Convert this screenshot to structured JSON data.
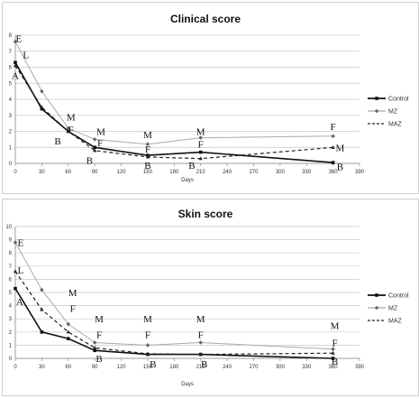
{
  "chart_data": [
    {
      "type": "line",
      "title": "Clinical score",
      "xlabel": "Days",
      "ylabel": "",
      "xlim": [
        0,
        390
      ],
      "ylim": [
        0,
        8
      ],
      "x_ticks": [
        "0",
        "30",
        "60",
        "90",
        "120",
        "150",
        "180",
        "210",
        "240",
        "270",
        "300",
        "330",
        "360",
        "390"
      ],
      "y_ticks": [
        "0",
        "1",
        "2",
        "3",
        "4",
        "5",
        "6",
        "7",
        "8"
      ],
      "grid": true,
      "legend": "right",
      "x": [
        0,
        30,
        60,
        90,
        150,
        210,
        360
      ],
      "series": [
        {
          "name": "Control",
          "values": [
            6.3,
            3.4,
            2.0,
            1.0,
            0.5,
            0.7,
            0.05
          ]
        },
        {
          "name": "MZ",
          "values": [
            7.6,
            4.5,
            2.2,
            1.5,
            1.2,
            1.6,
            1.7
          ]
        },
        {
          "name": "MAZ",
          "values": [
            6.1,
            3.5,
            2.0,
            0.8,
            0.4,
            0.3,
            1.0
          ]
        }
      ],
      "annotations": [
        {
          "text": "E",
          "x": 4,
          "y": 7.8
        },
        {
          "text": "L",
          "x": 12,
          "y": 6.8
        },
        {
          "text": "A",
          "x": 0,
          "y": 5.5
        },
        {
          "text": "M",
          "x": 63,
          "y": 2.9
        },
        {
          "text": "F",
          "x": 63,
          "y": 2.1
        },
        {
          "text": "B",
          "x": 48,
          "y": 1.4
        },
        {
          "text": "M",
          "x": 97,
          "y": 2.0
        },
        {
          "text": "F",
          "x": 96,
          "y": 1.3
        },
        {
          "text": "B",
          "x": 84,
          "y": 0.2
        },
        {
          "text": "M",
          "x": 150,
          "y": 1.8
        },
        {
          "text": "F",
          "x": 150,
          "y": 0.9
        },
        {
          "text": "B",
          "x": 150,
          "y": -0.1
        },
        {
          "text": "M",
          "x": 210,
          "y": 2.0
        },
        {
          "text": "F",
          "x": 210,
          "y": 1.2
        },
        {
          "text": "B",
          "x": 200,
          "y": -0.1
        },
        {
          "text": "F",
          "x": 360,
          "y": 2.3
        },
        {
          "text": "M",
          "x": 368,
          "y": 1.0
        },
        {
          "text": "B",
          "x": 368,
          "y": -0.2
        }
      ]
    },
    {
      "type": "line",
      "title": "Skin score",
      "xlabel": "Days",
      "ylabel": "",
      "xlim": [
        0,
        390
      ],
      "ylim": [
        0,
        10
      ],
      "x_ticks": [
        "0",
        "30",
        "60",
        "90",
        "120",
        "150",
        "180",
        "210",
        "240",
        "270",
        "300",
        "330",
        "360",
        "390"
      ],
      "y_ticks": [
        "0",
        "1",
        "2",
        "3",
        "4",
        "5",
        "6",
        "7",
        "8",
        "9",
        "10"
      ],
      "grid": true,
      "legend": "right",
      "x": [
        0,
        30,
        60,
        90,
        150,
        210,
        360
      ],
      "series": [
        {
          "name": "Control",
          "values": [
            5.3,
            2.0,
            1.5,
            0.6,
            0.3,
            0.3,
            0.0
          ]
        },
        {
          "name": "MZ",
          "values": [
            8.8,
            5.2,
            2.6,
            1.2,
            1.0,
            1.2,
            0.7
          ]
        },
        {
          "name": "MAZ",
          "values": [
            6.6,
            3.7,
            2.0,
            0.8,
            0.35,
            0.3,
            0.4
          ]
        }
      ],
      "annotations": [
        {
          "text": "E",
          "x": 6,
          "y": 8.8
        },
        {
          "text": "L",
          "x": 6,
          "y": 6.7
        },
        {
          "text": "A",
          "x": 5,
          "y": 4.3
        },
        {
          "text": "M",
          "x": 65,
          "y": 5.0
        },
        {
          "text": "F",
          "x": 65,
          "y": 3.8
        },
        {
          "text": "M",
          "x": 95,
          "y": 3.0
        },
        {
          "text": "F",
          "x": 95,
          "y": 1.8
        },
        {
          "text": "B",
          "x": 95,
          "y": 0.0
        },
        {
          "text": "M",
          "x": 150,
          "y": 3.0
        },
        {
          "text": "F",
          "x": 150,
          "y": 1.8
        },
        {
          "text": "B",
          "x": 156,
          "y": -0.4
        },
        {
          "text": "M",
          "x": 210,
          "y": 3.0
        },
        {
          "text": "F",
          "x": 210,
          "y": 1.8
        },
        {
          "text": "B",
          "x": 214,
          "y": -0.4
        },
        {
          "text": "M",
          "x": 362,
          "y": 2.5
        },
        {
          "text": "F",
          "x": 362,
          "y": 1.2
        },
        {
          "text": "B",
          "x": 362,
          "y": -0.2
        }
      ]
    }
  ]
}
